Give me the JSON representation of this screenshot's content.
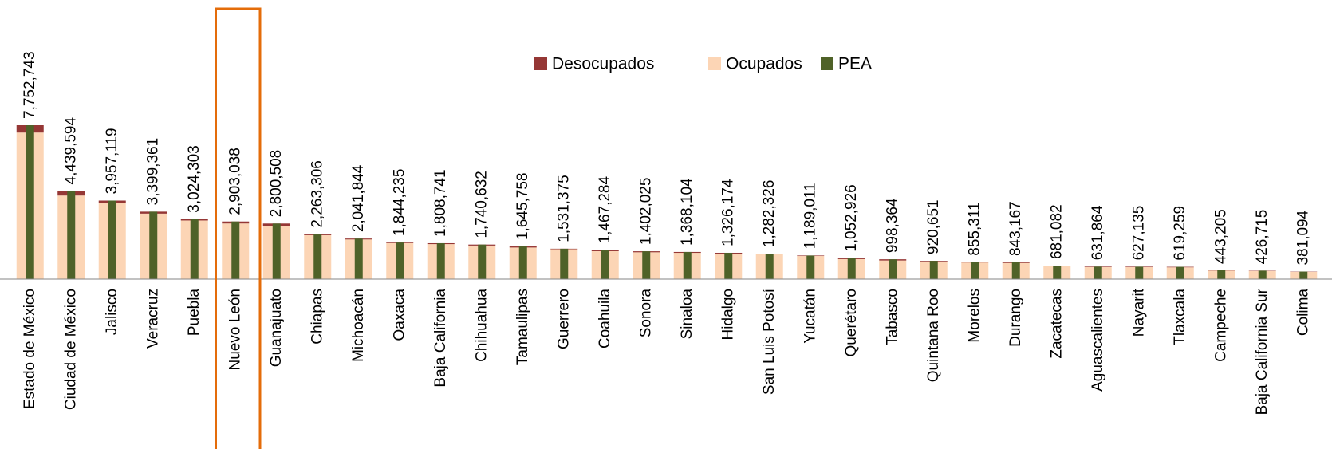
{
  "chart_data": {
    "type": "bar",
    "categories": [
      "Estado de México",
      "Ciudad de México",
      "Jalisco",
      "Veracruz",
      "Puebla",
      "Nuevo León",
      "Guanajuato",
      "Chiapas",
      "Michoacán",
      "Oaxaca",
      "Baja California",
      "Chihuahua",
      "Tamaulipas",
      "Guerrero",
      "Coahuila",
      "Sonora",
      "Sinaloa",
      "Hidalgo",
      "San Luis Potosí",
      "Yucatán",
      "Querétaro",
      "Tabasco",
      "Quintana Roo",
      "Morelos",
      "Durango",
      "Zacatecas",
      "Aguascalientes",
      "Nayarit",
      "Tlaxcala",
      "Campeche",
      "Baja California Sur",
      "Colima"
    ],
    "series": [
      {
        "name": "Desocupados",
        "color": "#953735",
        "values": [
          370000,
          230000,
          110000,
          100000,
          70000,
          100000,
          110000,
          50000,
          45000,
          30000,
          45000,
          50000,
          55000,
          25000,
          60000,
          50000,
          45000,
          40000,
          35000,
          25000,
          45000,
          60000,
          30000,
          20000,
          30000,
          20000,
          25000,
          25000,
          25000,
          13000,
          15000,
          13000
        ]
      },
      {
        "name": "Ocupados",
        "color": "#fcd5b5",
        "values": [
          7382743,
          4209594,
          3847119,
          3299361,
          2954303,
          2803038,
          2690508,
          2213306,
          1996844,
          1814235,
          1763741,
          1690632,
          1590758,
          1506375,
          1407284,
          1352025,
          1323104,
          1286174,
          1247326,
          1164011,
          1007926,
          938364,
          890651,
          835311,
          813167,
          661082,
          606864,
          602135,
          594259,
          430205,
          411715,
          368094
        ]
      },
      {
        "name": "PEA",
        "color": "#4f6228",
        "values": [
          7752743,
          4439594,
          3957119,
          3399361,
          3024303,
          2903038,
          2800508,
          2263306,
          2041844,
          1844235,
          1808741,
          1740632,
          1645758,
          1531375,
          1467284,
          1402025,
          1368104,
          1326174,
          1282326,
          1189011,
          1052926,
          998364,
          920651,
          855311,
          843167,
          681082,
          631864,
          627135,
          619259,
          443205,
          426715,
          381094
        ],
        "value_labels": [
          "7,752,743",
          "4,439,594",
          "3,957,119",
          "3,399,361",
          "3,024,303",
          "2,903,038",
          "2,800,508",
          "2,263,306",
          "2,041,844",
          "1,844,235",
          "1,808,741",
          "1,740,632",
          "1,645,758",
          "1,531,375",
          "1,467,284",
          "1,402,025",
          "1,368,104",
          "1,326,174",
          "1,282,326",
          "1,189,011",
          "1,052,926",
          "998,364",
          "920,651",
          "855,311",
          "843,167",
          "681,082",
          "631,864",
          "627,135",
          "619,259",
          "443,205",
          "426,715",
          "381,094"
        ]
      }
    ]
  }
}
